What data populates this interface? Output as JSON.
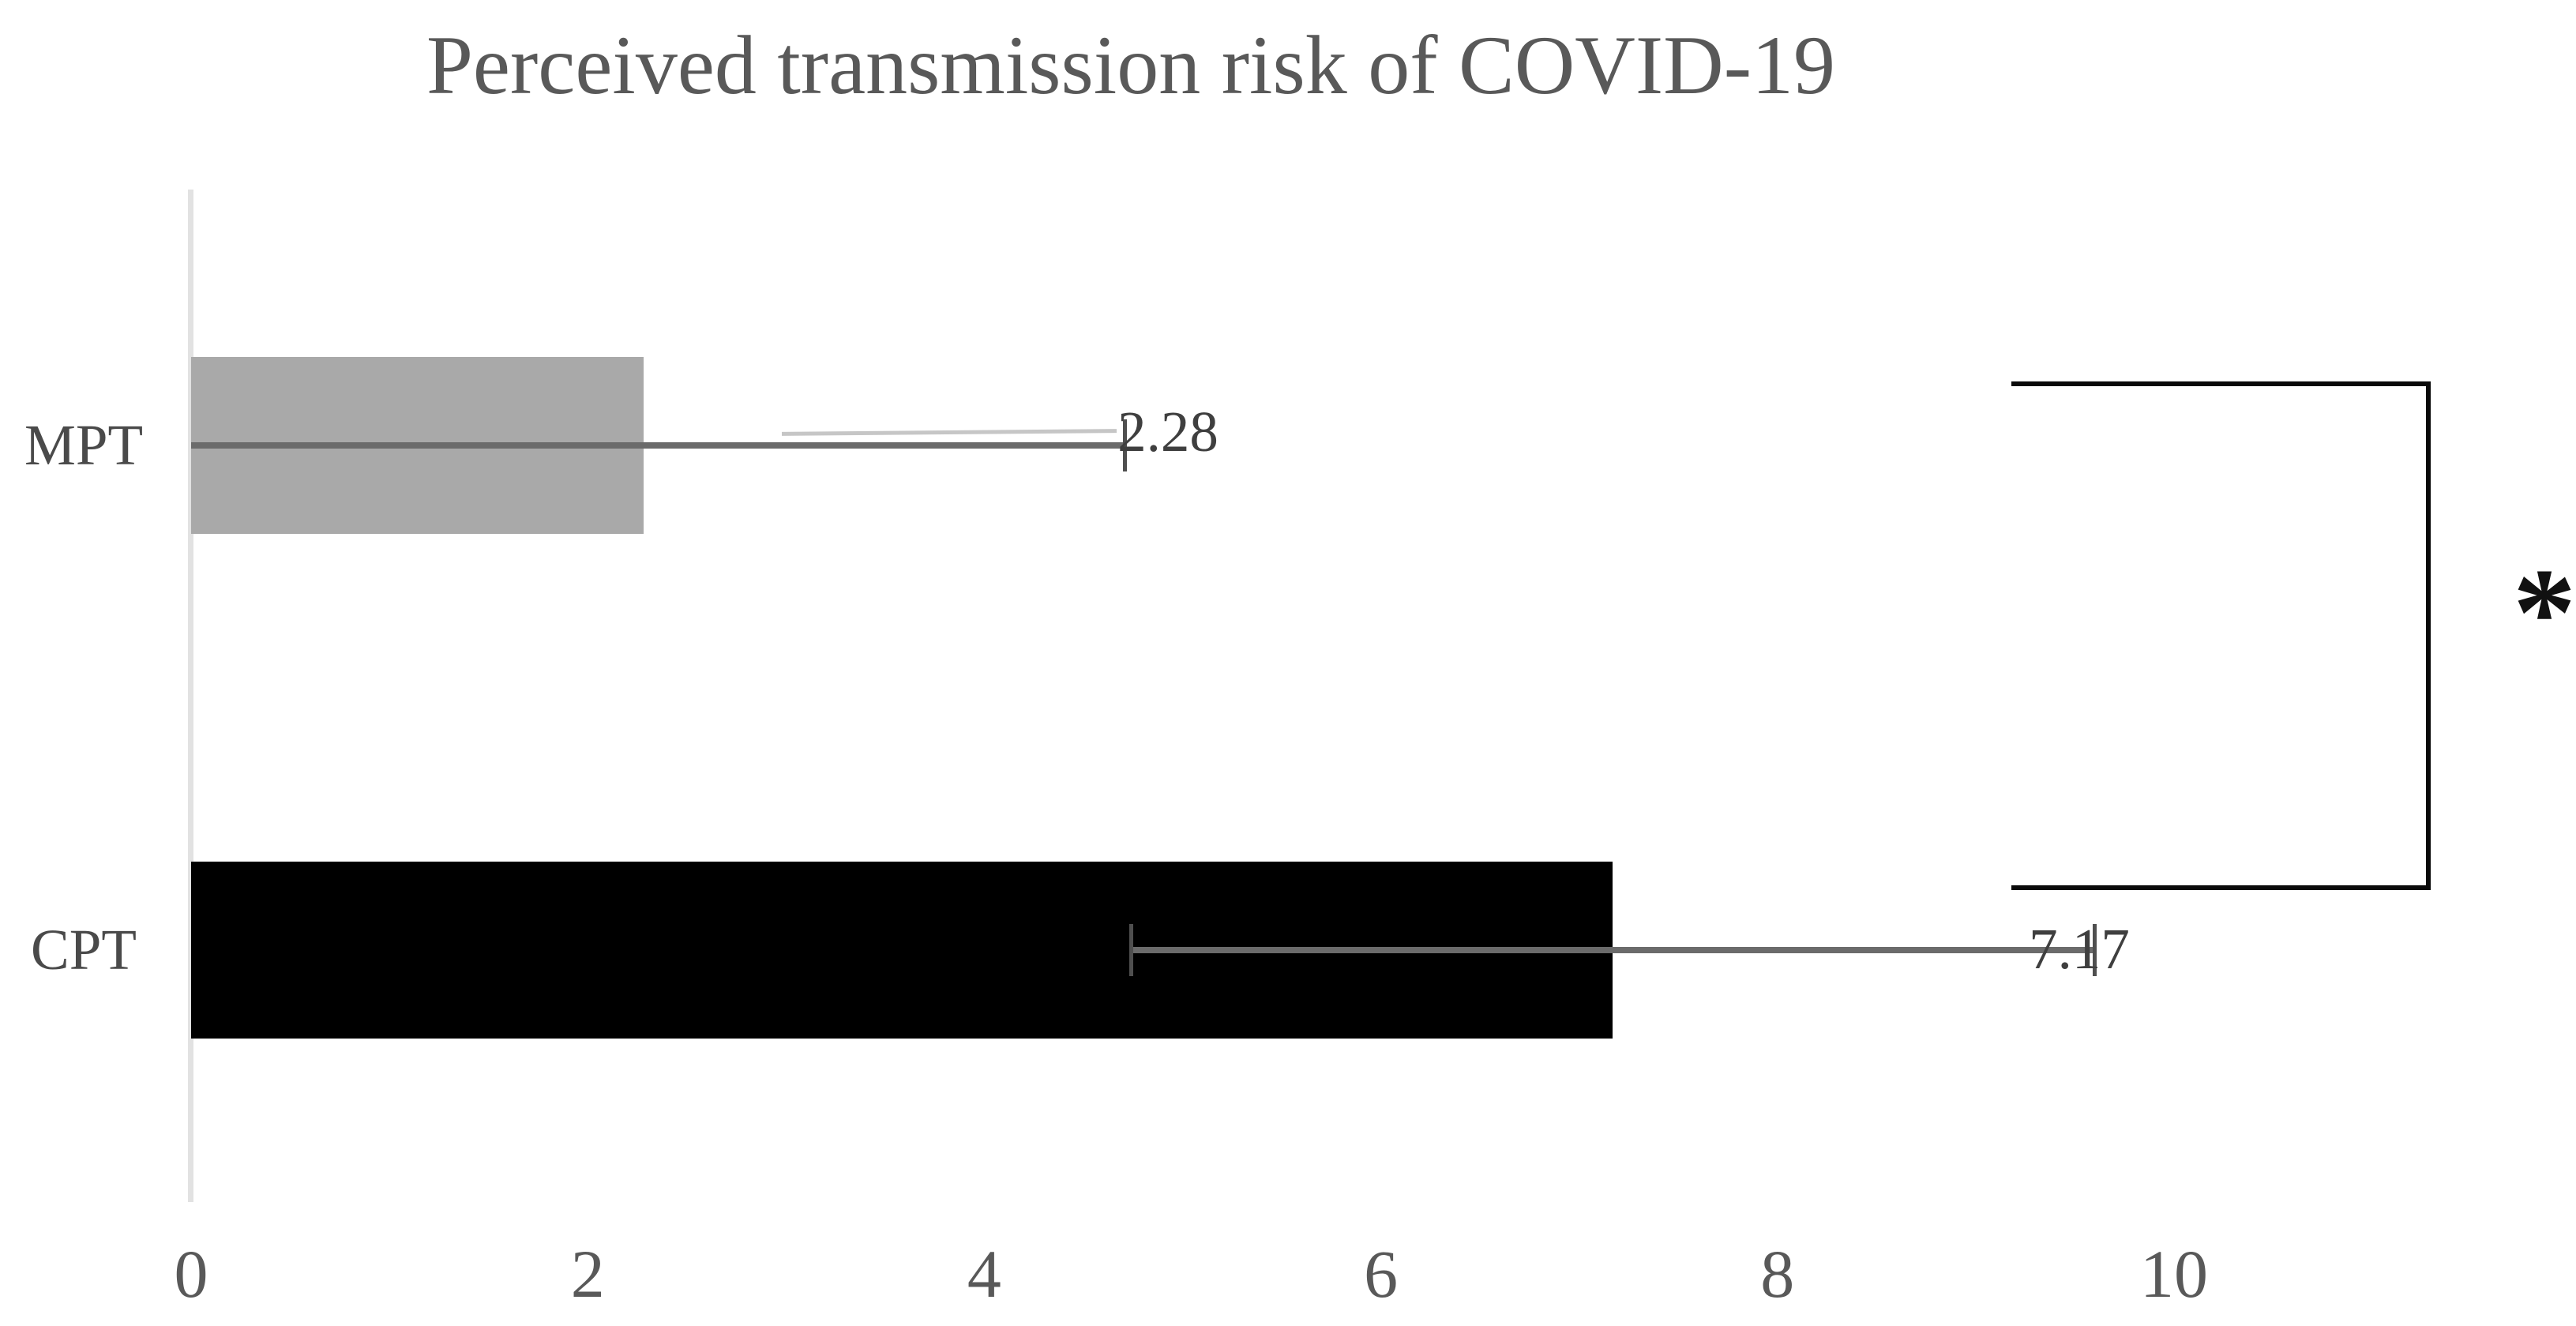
{
  "chart_data": {
    "type": "bar",
    "orientation": "horizontal",
    "title": "Perceived transmission risk of COVID-19",
    "categories": [
      "MPT",
      "CPT"
    ],
    "values": [
      2.28,
      7.17
    ],
    "data_labels": [
      "2.28",
      "7.17"
    ],
    "error_bars": {
      "type": "symmetric",
      "values": [
        2.43,
        2.43
      ]
    },
    "x_ticks": [
      "0",
      "2",
      "4",
      "6",
      "8",
      "10"
    ],
    "x_tick_values": [
      0,
      2,
      4,
      6,
      8,
      10
    ],
    "xlim": [
      0,
      11.6
    ],
    "bar_colors": [
      "#A9A9A9",
      "#000000"
    ],
    "gridlines": "none",
    "legend": "none",
    "annotation": {
      "symbol": "*",
      "type": "significance-bracket",
      "between": [
        "MPT",
        "CPT"
      ]
    }
  },
  "colors": {
    "background": "#FFFFFF",
    "title_text": "#595959",
    "tick_text": "#595959",
    "category_text": "#4A4A4A",
    "data_label_text": "#3F3F3F",
    "axis_line": "#E2E2E2",
    "error_bar": "#6B6B6B",
    "error_bar_cap": "#4F4F4F",
    "leader_line": "#C6C6C6",
    "bracket": "#0A0A0A",
    "bar_mpt": "#A9A9A9",
    "bar_cpt": "#000000"
  }
}
